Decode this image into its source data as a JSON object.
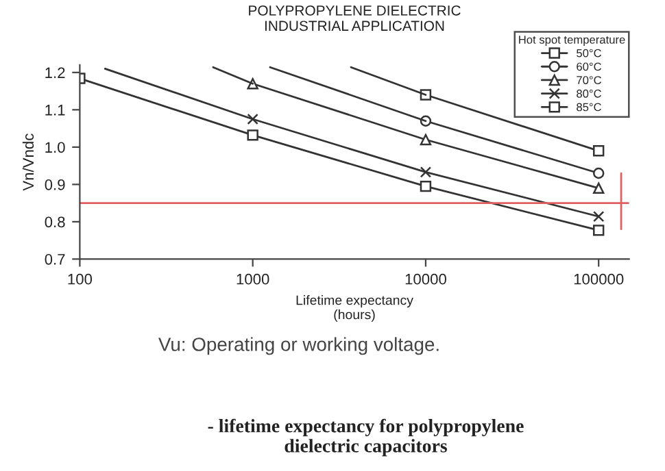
{
  "chart_data": {
    "type": "line",
    "title": "POLYPROPYLENE DIELECTRIC\nINDUSTRIAL APPLICATION",
    "xlabel": "Lifetime expectancy\n(hours)",
    "ylabel": "Vn/Vndc",
    "legend_title": "Hot spot temperature",
    "annotations": [
      "Vu: Operating or working voltage.",
      "- lifetime expectancy for polypropylene\ndielectric capacitors"
    ],
    "log": "x",
    "xlim": [
      100,
      150000
    ],
    "xticks": [
      100,
      1000,
      10000,
      100000
    ],
    "ylim": [
      0.7,
      1.22
    ],
    "yticks": [
      {
        "value": 0.7,
        "label": "0.7"
      },
      {
        "value": 0.8,
        "label": "0.8"
      },
      {
        "value": 0.9,
        "label": "0.9"
      },
      {
        "value": 1.0,
        "label": "1.0"
      },
      {
        "value": 1.1,
        "label": "1.1"
      },
      {
        "value": 1.2,
        "label": "1.2"
      }
    ],
    "grid": false,
    "legend": "top right",
    "line_style": "solid",
    "series": [
      {
        "name": "50°C",
        "color": "#333333",
        "marker": "square",
        "x": [
          10000,
          100000
        ],
        "values": [
          1.14,
          0.99
        ]
      },
      {
        "name": "60°C",
        "color": "#333333",
        "marker": "circle",
        "x": [
          10000,
          100000
        ],
        "values": [
          1.07,
          0.93
        ]
      },
      {
        "name": "70°C",
        "color": "#333333",
        "marker": "triangle",
        "x": [
          1000,
          10000,
          100000
        ],
        "values": [
          1.17,
          1.02,
          0.89
        ]
      },
      {
        "name": "80°C",
        "color": "#333333",
        "marker": "cross",
        "x": [
          1000,
          10000,
          100000
        ],
        "values": [
          1.075,
          0.933,
          0.814
        ]
      },
      {
        "name": "85°C",
        "color": "#333333",
        "marker": "square",
        "x": [
          100,
          1000,
          10000,
          100000
        ],
        "values": [
          1.184,
          1.032,
          0.895,
          0.777
        ]
      },
      {
        "color": "#333333",
        "marker": "none",
        "x": [
          3700,
          10000
        ],
        "values": [
          1.214,
          1.14
        ]
      },
      {
        "color": "#333333",
        "marker": "none",
        "x": [
          1260,
          10000
        ],
        "values": [
          1.214,
          1.07
        ]
      },
      {
        "color": "#333333",
        "marker": "none",
        "x": [
          590,
          1000
        ],
        "values": [
          1.214,
          1.17
        ]
      },
      {
        "color": "#333333",
        "marker": "none",
        "x": [
          140,
          1000
        ],
        "values": [
          1.21,
          1.075
        ]
      },
      {
        "color": "#e06060",
        "marker": "none",
        "x": [
          135000,
          135000
        ],
        "values": [
          0.93,
          0.78
        ]
      }
    ],
    "ref_lines": [
      {
        "axis": "y",
        "value": 0.85,
        "color": "#e06060"
      }
    ]
  }
}
